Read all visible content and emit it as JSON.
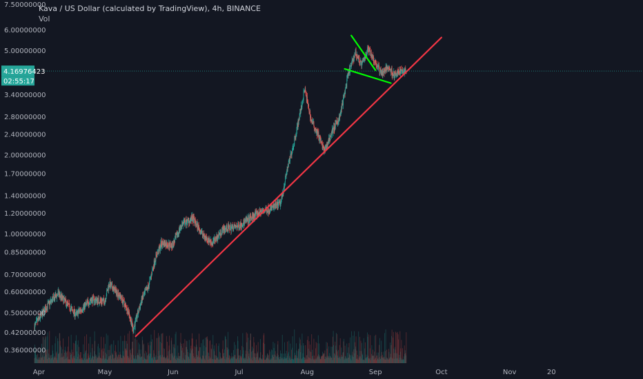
{
  "chart_data": {
    "type": "candlestick",
    "title": "Kava / US Dollar (calculated by TradingView), 4h, BINANCE",
    "subtitle": "Vol",
    "y_scale": "log",
    "ylim": [
      0.32,
      7.6
    ],
    "y_ticks": [
      {
        "value": 7.5,
        "label": "7.50000000"
      },
      {
        "value": 6.0,
        "label": "6.00000000"
      },
      {
        "value": 5.0,
        "label": "5.00000000"
      },
      {
        "value": 3.4,
        "label": "3.40000000"
      },
      {
        "value": 2.8,
        "label": "2.80000000"
      },
      {
        "value": 2.4,
        "label": "2.40000000"
      },
      {
        "value": 2.0,
        "label": "2.00000000"
      },
      {
        "value": 1.7,
        "label": "1.70000000"
      },
      {
        "value": 1.4,
        "label": "1.40000000"
      },
      {
        "value": 1.2,
        "label": "1.20000000"
      },
      {
        "value": 1.0,
        "label": "1.00000000"
      },
      {
        "value": 0.85,
        "label": "0.85000000"
      },
      {
        "value": 0.7,
        "label": "0.70000000"
      },
      {
        "value": 0.6,
        "label": "0.60000000"
      },
      {
        "value": 0.5,
        "label": "0.50000000"
      },
      {
        "value": 0.42,
        "label": "0.42000000"
      },
      {
        "value": 0.36,
        "label": "0.36000000"
      }
    ],
    "x_ticks": [
      {
        "date": "2021-04-01",
        "label": "Apr"
      },
      {
        "date": "2021-05-01",
        "label": "May"
      },
      {
        "date": "2021-06-01",
        "label": "Jun"
      },
      {
        "date": "2021-07-01",
        "label": "Jul"
      },
      {
        "date": "2021-08-01",
        "label": "Aug"
      },
      {
        "date": "2021-09-01",
        "label": "Sep"
      },
      {
        "date": "2021-10-01",
        "label": "Oct"
      },
      {
        "date": "2021-11-01",
        "label": "Nov"
      },
      {
        "date": "2021-11-20",
        "label": "20"
      }
    ],
    "xlim": [
      "2021-03-30",
      "2021-12-31"
    ],
    "price_path": [
      {
        "date": "2021-03-30",
        "price": 0.44
      },
      {
        "date": "2021-04-05",
        "price": 0.53
      },
      {
        "date": "2021-04-10",
        "price": 0.59
      },
      {
        "date": "2021-04-18",
        "price": 0.49
      },
      {
        "date": "2021-04-25",
        "price": 0.56
      },
      {
        "date": "2021-05-01",
        "price": 0.55
      },
      {
        "date": "2021-05-03",
        "price": 0.64
      },
      {
        "date": "2021-05-08",
        "price": 0.58
      },
      {
        "date": "2021-05-12",
        "price": 0.5
      },
      {
        "date": "2021-05-14",
        "price": 0.43
      },
      {
        "date": "2021-05-18",
        "price": 0.56
      },
      {
        "date": "2021-05-21",
        "price": 0.63
      },
      {
        "date": "2021-05-24",
        "price": 0.8
      },
      {
        "date": "2021-05-27",
        "price": 0.92
      },
      {
        "date": "2021-06-01",
        "price": 0.9
      },
      {
        "date": "2021-06-05",
        "price": 1.08
      },
      {
        "date": "2021-06-10",
        "price": 1.14
      },
      {
        "date": "2021-06-15",
        "price": 0.98
      },
      {
        "date": "2021-06-19",
        "price": 0.92
      },
      {
        "date": "2021-06-24",
        "price": 1.04
      },
      {
        "date": "2021-06-30",
        "price": 1.06
      },
      {
        "date": "2021-07-05",
        "price": 1.12
      },
      {
        "date": "2021-07-10",
        "price": 1.2
      },
      {
        "date": "2021-07-15",
        "price": 1.24
      },
      {
        "date": "2021-07-20",
        "price": 1.3
      },
      {
        "date": "2021-07-23",
        "price": 1.75
      },
      {
        "date": "2021-07-26",
        "price": 2.2
      },
      {
        "date": "2021-07-29",
        "price": 2.9
      },
      {
        "date": "2021-07-31",
        "price": 3.55
      },
      {
        "date": "2021-08-03",
        "price": 2.7
      },
      {
        "date": "2021-08-06",
        "price": 2.4
      },
      {
        "date": "2021-08-09",
        "price": 2.05
      },
      {
        "date": "2021-08-12",
        "price": 2.4
      },
      {
        "date": "2021-08-16",
        "price": 2.8
      },
      {
        "date": "2021-08-20",
        "price": 4.1
      },
      {
        "date": "2021-08-23",
        "price": 4.9
      },
      {
        "date": "2021-08-26",
        "price": 4.4
      },
      {
        "date": "2021-08-29",
        "price": 5.1
      },
      {
        "date": "2021-09-01",
        "price": 4.5
      },
      {
        "date": "2021-09-04",
        "price": 4.1
      },
      {
        "date": "2021-09-07",
        "price": 4.3
      },
      {
        "date": "2021-09-10",
        "price": 4.0
      },
      {
        "date": "2021-09-13",
        "price": 4.2
      },
      {
        "date": "2021-09-15",
        "price": 4.17
      }
    ],
    "current_price": {
      "value": 4.16976423,
      "label": "4.16976423",
      "countdown": "02:55:17",
      "color": "#26a69a"
    },
    "trendlines": [
      {
        "color": "#f23645",
        "from": {
          "date": "2021-05-15",
          "price": 0.405
        },
        "to": {
          "date": "2021-10-01",
          "price": 5.6
        }
      },
      {
        "color": "#00ff00",
        "from": {
          "date": "2021-08-21",
          "price": 5.7
        },
        "to": {
          "date": "2021-09-01",
          "price": 4.2
        }
      },
      {
        "color": "#00ff00",
        "from": {
          "date": "2021-08-18",
          "price": 4.25
        },
        "to": {
          "date": "2021-09-08",
          "price": 3.75
        }
      }
    ],
    "colors": {
      "background": "#131722",
      "up": "#26a69a",
      "down": "#ef5350",
      "text": "#b2b5be"
    }
  }
}
